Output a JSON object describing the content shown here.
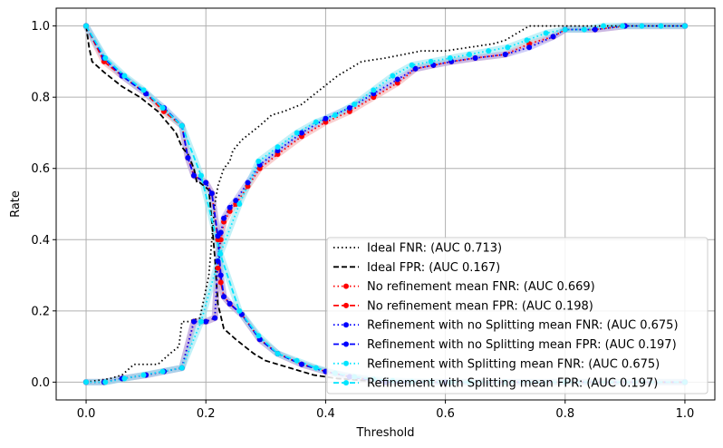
{
  "chart_data": {
    "type": "line",
    "title": "",
    "xlabel": "Threshold",
    "ylabel": "Rate",
    "xlim": [
      -0.05,
      1.05
    ],
    "ylim": [
      -0.05,
      1.05
    ],
    "xticks": [
      0.0,
      0.2,
      0.4,
      0.6,
      0.8,
      1.0
    ],
    "xtick_labels": [
      "0.0",
      "0.2",
      "0.4",
      "0.6",
      "0.8",
      "1.0"
    ],
    "yticks": [
      0.0,
      0.2,
      0.4,
      0.6,
      0.8,
      1.0
    ],
    "ytick_labels": [
      "0.0",
      "0.2",
      "0.4",
      "0.6",
      "0.8",
      "1.0"
    ],
    "grid": true,
    "legend_position": "lower-right",
    "series": [
      {
        "name": "Ideal FNR: (AUC 0.713)",
        "color": "#000000",
        "style": "dotted",
        "marker": "none",
        "band": false,
        "x": [
          0.0,
          0.04,
          0.06,
          0.08,
          0.12,
          0.14,
          0.155,
          0.16,
          0.17,
          0.19,
          0.205,
          0.21,
          0.215,
          0.22,
          0.23,
          0.24,
          0.245,
          0.26,
          0.29,
          0.31,
          0.33,
          0.36,
          0.39,
          0.42,
          0.46,
          0.5,
          0.53,
          0.56,
          0.6,
          0.64,
          0.68,
          0.7,
          0.72,
          0.74,
          0.76,
          0.8,
          1.0
        ],
        "y": [
          0.0,
          0.01,
          0.02,
          0.05,
          0.05,
          0.08,
          0.1,
          0.17,
          0.17,
          0.18,
          0.3,
          0.4,
          0.5,
          0.55,
          0.6,
          0.62,
          0.65,
          0.68,
          0.72,
          0.75,
          0.76,
          0.78,
          0.82,
          0.86,
          0.9,
          0.91,
          0.92,
          0.93,
          0.93,
          0.94,
          0.95,
          0.96,
          0.98,
          1.0,
          1.0,
          1.0,
          1.0
        ]
      },
      {
        "name": "Ideal FPR: (AUC 0.167)",
        "color": "#000000",
        "style": "dashed",
        "marker": "none",
        "band": false,
        "x": [
          0.0,
          0.005,
          0.01,
          0.03,
          0.06,
          0.09,
          0.12,
          0.14,
          0.15,
          0.16,
          0.17,
          0.18,
          0.185,
          0.19,
          0.205,
          0.21,
          0.215,
          0.22,
          0.23,
          0.25,
          0.28,
          0.3,
          0.34,
          0.38,
          0.42,
          0.5,
          0.6,
          0.8,
          1.0
        ],
        "y": [
          1.0,
          0.94,
          0.9,
          0.87,
          0.83,
          0.8,
          0.76,
          0.72,
          0.7,
          0.66,
          0.64,
          0.6,
          0.56,
          0.56,
          0.54,
          0.45,
          0.35,
          0.22,
          0.15,
          0.12,
          0.08,
          0.06,
          0.04,
          0.02,
          0.01,
          0.0,
          0.0,
          0.0,
          0.0
        ]
      },
      {
        "name": "No refinement mean FNR: (AUC 0.669)",
        "color": "#ff0000",
        "style": "dotted",
        "marker": "circle",
        "band": true,
        "x": [
          0.0,
          0.03,
          0.06,
          0.1,
          0.13,
          0.16,
          0.18,
          0.2,
          0.215,
          0.22,
          0.225,
          0.23,
          0.24,
          0.25,
          0.27,
          0.29,
          0.32,
          0.36,
          0.4,
          0.44,
          0.48,
          0.52,
          0.55,
          0.58,
          0.61,
          0.65,
          0.7,
          0.74,
          0.78,
          0.8,
          0.85,
          0.9,
          1.0
        ],
        "y": [
          0.0,
          0.0,
          0.01,
          0.02,
          0.03,
          0.04,
          0.17,
          0.17,
          0.18,
          0.32,
          0.4,
          0.45,
          0.48,
          0.5,
          0.55,
          0.6,
          0.64,
          0.69,
          0.73,
          0.76,
          0.8,
          0.84,
          0.88,
          0.89,
          0.9,
          0.91,
          0.92,
          0.95,
          0.97,
          0.99,
          0.99,
          1.0,
          1.0
        ]
      },
      {
        "name": "No refinement mean FPR: (AUC 0.198)",
        "color": "#ff0000",
        "style": "dashed",
        "marker": "circle",
        "band": true,
        "x": [
          0.0,
          0.03,
          0.06,
          0.1,
          0.13,
          0.16,
          0.17,
          0.18,
          0.2,
          0.21,
          0.22,
          0.225,
          0.23,
          0.24,
          0.26,
          0.29,
          0.32,
          0.36,
          0.4,
          0.44,
          0.5,
          0.6,
          0.8,
          1.0
        ],
        "y": [
          1.0,
          0.9,
          0.86,
          0.81,
          0.76,
          0.72,
          0.63,
          0.58,
          0.56,
          0.53,
          0.4,
          0.28,
          0.24,
          0.22,
          0.19,
          0.12,
          0.08,
          0.05,
          0.03,
          0.015,
          0.0,
          0.0,
          0.0,
          0.0
        ]
      },
      {
        "name": "Refinement with no Splitting mean FNR: (AUC 0.675)",
        "color": "#0000ff",
        "style": "dotted",
        "marker": "circle",
        "band": true,
        "x": [
          0.0,
          0.03,
          0.06,
          0.1,
          0.13,
          0.16,
          0.18,
          0.2,
          0.215,
          0.22,
          0.225,
          0.23,
          0.24,
          0.25,
          0.27,
          0.29,
          0.32,
          0.36,
          0.4,
          0.44,
          0.48,
          0.52,
          0.55,
          0.58,
          0.61,
          0.65,
          0.7,
          0.74,
          0.78,
          0.8,
          0.85,
          0.9,
          1.0
        ],
        "y": [
          0.0,
          0.0,
          0.01,
          0.02,
          0.03,
          0.04,
          0.17,
          0.17,
          0.18,
          0.34,
          0.42,
          0.46,
          0.49,
          0.51,
          0.56,
          0.61,
          0.65,
          0.7,
          0.74,
          0.77,
          0.81,
          0.85,
          0.88,
          0.89,
          0.9,
          0.91,
          0.92,
          0.94,
          0.97,
          0.99,
          0.99,
          1.0,
          1.0
        ]
      },
      {
        "name": "Refinement with no Splitting mean FPR: (AUC 0.197)",
        "color": "#0000ff",
        "style": "dashed",
        "marker": "circle",
        "band": true,
        "x": [
          0.0,
          0.03,
          0.06,
          0.1,
          0.13,
          0.16,
          0.17,
          0.18,
          0.2,
          0.21,
          0.22,
          0.225,
          0.23,
          0.24,
          0.26,
          0.29,
          0.32,
          0.36,
          0.4,
          0.44,
          0.5,
          0.6,
          0.8,
          1.0
        ],
        "y": [
          1.0,
          0.91,
          0.86,
          0.81,
          0.77,
          0.72,
          0.63,
          0.58,
          0.56,
          0.53,
          0.41,
          0.3,
          0.24,
          0.22,
          0.19,
          0.12,
          0.08,
          0.05,
          0.03,
          0.015,
          0.0,
          0.0,
          0.0,
          0.0
        ]
      },
      {
        "name": "Refinement with Splitting mean FNR: (AUC 0.675)",
        "color": "#00e5ff",
        "style": "dotted",
        "marker": "circle",
        "band": true,
        "x": [
          0.0,
          0.032,
          0.064,
          0.096,
          0.128,
          0.16,
          0.192,
          0.224,
          0.256,
          0.288,
          0.32,
          0.352,
          0.384,
          0.416,
          0.448,
          0.48,
          0.512,
          0.544,
          0.576,
          0.608,
          0.64,
          0.672,
          0.704,
          0.736,
          0.768,
          0.8,
          0.832,
          0.864,
          0.896,
          0.928,
          0.96,
          1.0
        ],
        "y": [
          0.0,
          0.0,
          0.01,
          0.02,
          0.03,
          0.04,
          0.17,
          0.36,
          0.5,
          0.62,
          0.66,
          0.7,
          0.73,
          0.75,
          0.78,
          0.82,
          0.86,
          0.89,
          0.9,
          0.91,
          0.92,
          0.93,
          0.94,
          0.96,
          0.98,
          0.99,
          0.99,
          1.0,
          1.0,
          1.0,
          1.0,
          1.0
        ]
      },
      {
        "name": "Refinement with Splitting mean FPR: (AUC 0.197)",
        "color": "#00e5ff",
        "style": "dashed",
        "marker": "circle",
        "band": true,
        "x": [
          0.0,
          0.032,
          0.064,
          0.096,
          0.128,
          0.16,
          0.192,
          0.224,
          0.256,
          0.288,
          0.32,
          0.352,
          0.384,
          0.416,
          0.448,
          0.48,
          0.512,
          0.544,
          0.576,
          0.608,
          0.64,
          0.7,
          0.8,
          1.0
        ],
        "y": [
          1.0,
          0.91,
          0.86,
          0.82,
          0.77,
          0.72,
          0.58,
          0.36,
          0.2,
          0.13,
          0.08,
          0.06,
          0.04,
          0.025,
          0.015,
          0.008,
          0.004,
          0.002,
          0.001,
          0.0,
          0.0,
          0.0,
          0.0,
          0.0
        ]
      }
    ]
  }
}
